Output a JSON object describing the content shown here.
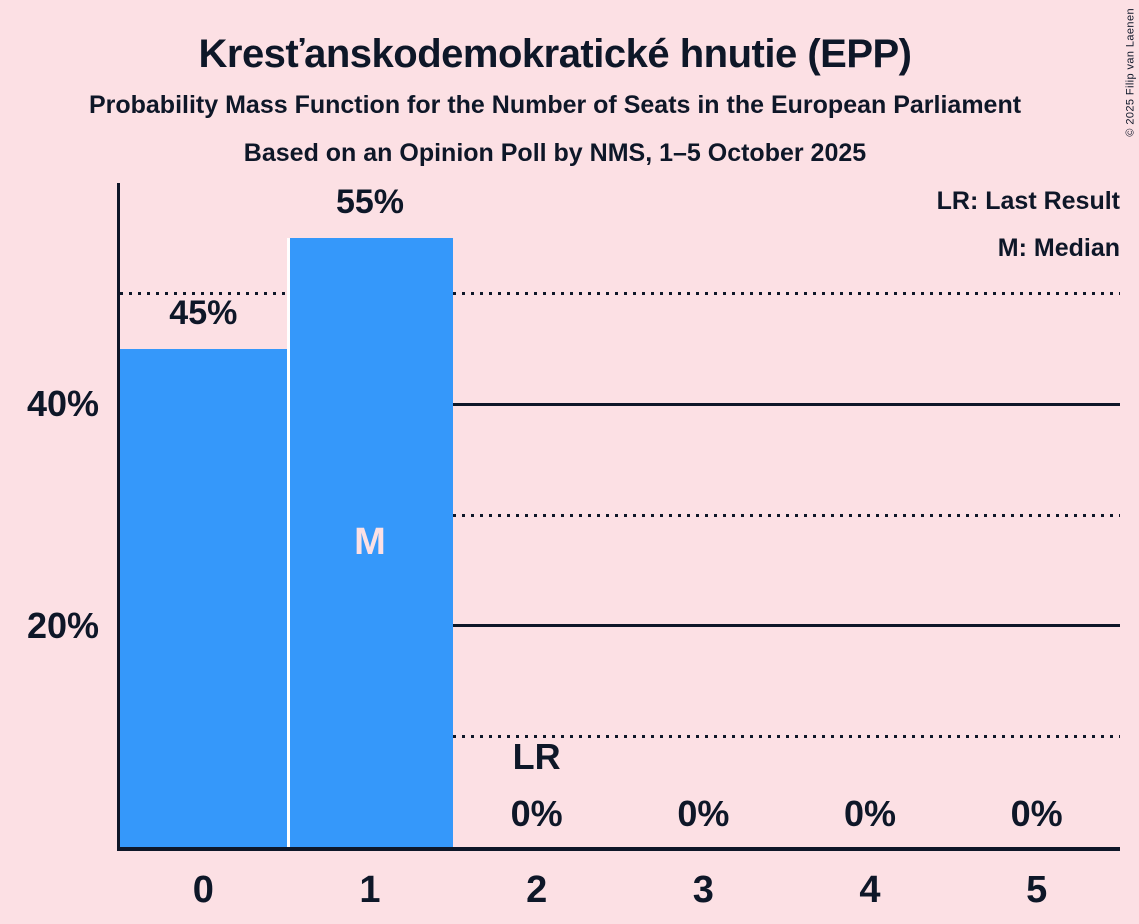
{
  "title": "Kresťanskodemokratické hnutie (EPP)",
  "subtitle": "Probability Mass Function for the Number of Seats in the European Parliament",
  "poll_line": "Based on an Opinion Poll by NMS, 1–5 October 2025",
  "copyright": "© 2025 Filip van Laenen",
  "legend": {
    "lr": "LR: Last Result",
    "m": "M: Median"
  },
  "colors": {
    "background": "#fce0e4",
    "ink": "#0e1728",
    "bar": "#3598fa",
    "bar_divider": "#ffffff"
  },
  "chart_data": {
    "type": "bar",
    "title": "Kresťanskodemokratické hnutie (EPP)",
    "subtitle": "Probability Mass Function for the Number of Seats in the European Parliament",
    "source": "Based on an Opinion Poll by NMS, 1–5 October 2025",
    "xlabel": "",
    "ylabel": "",
    "categories": [
      "0",
      "1",
      "2",
      "3",
      "4",
      "5"
    ],
    "values": [
      45,
      55,
      0,
      0,
      0,
      0
    ],
    "bar_labels": [
      "45%",
      "55%",
      "0%",
      "0%",
      "0%",
      "0%"
    ],
    "median_category": "1",
    "median_marker": "M",
    "last_result_category": "2",
    "last_result_marker": "LR",
    "ylim": [
      0,
      60
    ],
    "yticks": [
      {
        "pct": 20,
        "label": "20%"
      },
      {
        "pct": 40,
        "label": "40%"
      }
    ],
    "gridlines": [
      {
        "pct": 10,
        "style": "dotted"
      },
      {
        "pct": 20,
        "style": "solid"
      },
      {
        "pct": 30,
        "style": "dotted"
      },
      {
        "pct": 40,
        "style": "solid"
      },
      {
        "pct": 50,
        "style": "dotted"
      }
    ],
    "grid": true,
    "legend_position": "top-right",
    "legend": [
      "LR: Last Result",
      "M: Median"
    ]
  }
}
